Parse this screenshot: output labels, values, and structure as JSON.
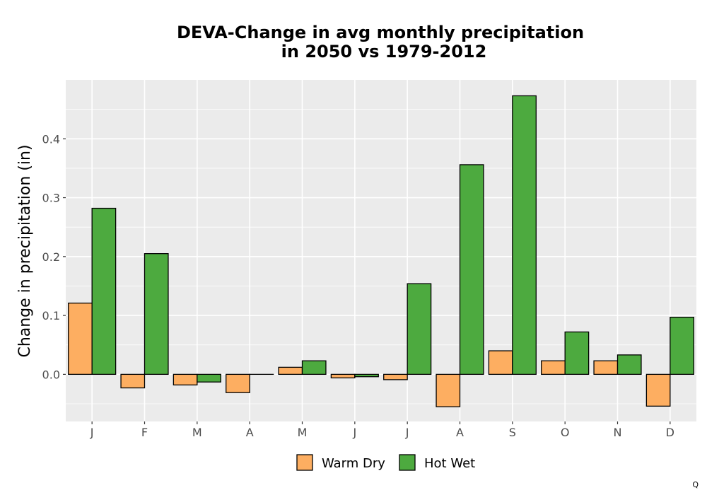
{
  "chart_data": {
    "type": "bar",
    "title": "DEVA-Change in avg monthly precipitation",
    "subtitle": "in 2050 vs 1979-2012",
    "ylabel": "Change in precipitation (in)",
    "xlabel": "",
    "categories": [
      "J",
      "F",
      "M",
      "A",
      "M",
      "J",
      "J",
      "A",
      "S",
      "O",
      "N",
      "D"
    ],
    "series": [
      {
        "name": "Warm Dry",
        "color": "#fdae61",
        "values": [
          0.121,
          -0.023,
          -0.018,
          -0.031,
          0.012,
          -0.006,
          -0.009,
          -0.055,
          0.04,
          0.023,
          0.023,
          -0.054
        ]
      },
      {
        "name": "Hot Wet",
        "color": "#4daa3f",
        "values": [
          0.282,
          0.205,
          -0.013,
          0.0,
          0.023,
          -0.004,
          0.154,
          0.356,
          0.473,
          0.072,
          0.033,
          0.097
        ]
      }
    ],
    "ylim": [
      -0.08,
      0.5
    ],
    "yticks": [
      0.0,
      0.1,
      0.2,
      0.3,
      0.4
    ],
    "ytick_labels": [
      "0.0",
      "0.1",
      "0.2",
      "0.3",
      "0.4"
    ],
    "grid": true,
    "legend": "bottom"
  },
  "corner_mark": "Q"
}
